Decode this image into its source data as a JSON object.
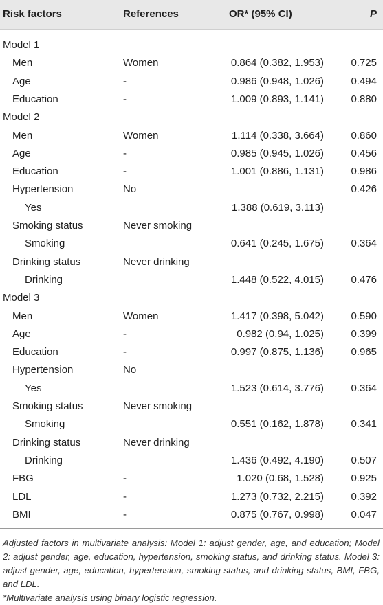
{
  "headers": {
    "risk": "Risk factors",
    "references": "References",
    "or": "OR* (95% CI)",
    "p": "P"
  },
  "rows": [
    {
      "type": "model",
      "risk": "Model 1",
      "ref": "",
      "or": "",
      "p": ""
    },
    {
      "type": "item",
      "risk": "Men",
      "ref": "Women",
      "or": "0.864 (0.382, 1.953)",
      "p": "0.725"
    },
    {
      "type": "item",
      "risk": "Age",
      "ref": "-",
      "or": "0.986 (0.948, 1.026)",
      "p": "0.494"
    },
    {
      "type": "item",
      "risk": "Education",
      "ref": "-",
      "or": "1.009 (0.893, 1.141)",
      "p": "0.880"
    },
    {
      "type": "model",
      "risk": "Model 2",
      "ref": "",
      "or": "",
      "p": ""
    },
    {
      "type": "item",
      "risk": "Men",
      "ref": "Women",
      "or": "1.114 (0.338, 3.664)",
      "p": "0.860"
    },
    {
      "type": "item",
      "risk": "Age",
      "ref": "-",
      "or": "0.985 (0.945, 1.026)",
      "p": "0.456"
    },
    {
      "type": "item",
      "risk": "Education",
      "ref": "-",
      "or": "1.001 (0.886, 1.131)",
      "p": "0.986"
    },
    {
      "type": "item",
      "risk": "Hypertension",
      "ref": "No",
      "or": "",
      "p": "0.426"
    },
    {
      "type": "sub",
      "risk": "Yes",
      "ref": "",
      "or": "1.388 (0.619, 3.113)",
      "p": ""
    },
    {
      "type": "item",
      "risk": "Smoking status",
      "ref": "Never smoking",
      "or": "",
      "p": ""
    },
    {
      "type": "sub",
      "risk": "Smoking",
      "ref": "",
      "or": "0.641 (0.245, 1.675)",
      "p": "0.364"
    },
    {
      "type": "item",
      "risk": "Drinking status",
      "ref": "Never drinking",
      "or": "",
      "p": ""
    },
    {
      "type": "sub",
      "risk": "Drinking",
      "ref": "",
      "or": "1.448 (0.522, 4.015)",
      "p": "0.476"
    },
    {
      "type": "model",
      "risk": "Model 3",
      "ref": "",
      "or": "",
      "p": ""
    },
    {
      "type": "item",
      "risk": "Men",
      "ref": "Women",
      "or": "1.417 (0.398, 5.042)",
      "p": "0.590"
    },
    {
      "type": "item",
      "risk": "Age",
      "ref": "-",
      "or": "0.982 (0.94, 1.025)",
      "p": "0.399"
    },
    {
      "type": "item",
      "risk": "Education",
      "ref": "-",
      "or": "0.997 (0.875, 1.136)",
      "p": "0.965"
    },
    {
      "type": "item",
      "risk": "Hypertension",
      "ref": "No",
      "or": "",
      "p": ""
    },
    {
      "type": "sub",
      "risk": "Yes",
      "ref": "",
      "or": "1.523 (0.614, 3.776)",
      "p": "0.364"
    },
    {
      "type": "item",
      "risk": "Smoking status",
      "ref": "Never smoking",
      "or": "",
      "p": ""
    },
    {
      "type": "sub",
      "risk": "Smoking",
      "ref": "",
      "or": "0.551 (0.162, 1.878)",
      "p": "0.341"
    },
    {
      "type": "item",
      "risk": "Drinking status",
      "ref": "Never drinking",
      "or": "",
      "p": ""
    },
    {
      "type": "sub",
      "risk": "Drinking",
      "ref": "",
      "or": "1.436 (0.492, 4.190)",
      "p": "0.507"
    },
    {
      "type": "item",
      "risk": "FBG",
      "ref": "-",
      "or": "1.020 (0.68, 1.528)",
      "p": "0.925"
    },
    {
      "type": "item",
      "risk": "LDL",
      "ref": "-",
      "or": "1.273 (0.732, 2.215)",
      "p": "0.392"
    },
    {
      "type": "item",
      "risk": "BMI",
      "ref": "-",
      "or": "0.875 (0.767, 0.998)",
      "p": "0.047"
    }
  ],
  "notes": {
    "adjusted": "Adjusted factors in multivariate analysis: Model 1: adjust gender, age, and education; Model 2: adjust gender, age, education, hypertension, smoking status, and drinking status. Model 3: adjust gender, age, education, hypertension, smoking status, and drinking status, BMI, FBG, and LDL.",
    "footnote": "*Multivariate analysis using binary logistic regression."
  }
}
